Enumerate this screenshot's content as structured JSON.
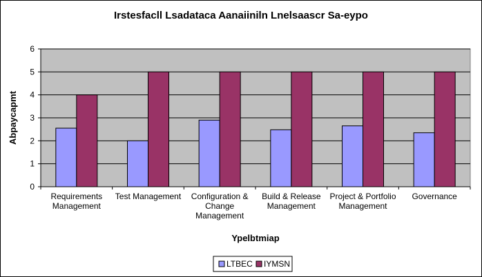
{
  "chart_data": {
    "type": "bar",
    "title": "Irstesfacll Lsadataca Aanaiiniln Lnelsaascr Sa-eypo",
    "xlabel": "Ypelbtmiap",
    "ylabel": "Abpaycapmt",
    "ylim": [
      0,
      6
    ],
    "yticks": [
      0,
      1,
      2,
      3,
      4,
      5,
      6
    ],
    "grid": true,
    "legend_position": "bottom",
    "categories": [
      [
        "Requirements",
        "Management"
      ],
      [
        "Test Management"
      ],
      [
        "Configuration &",
        "Change",
        "Management"
      ],
      [
        "Build & Release",
        "Management"
      ],
      [
        "Project & Portfolio",
        "Management"
      ],
      [
        "Governance"
      ]
    ],
    "series": [
      {
        "name": "LTBEC",
        "color": "#9999ff",
        "values": [
          2.55,
          2.0,
          2.9,
          2.48,
          2.65,
          2.35
        ]
      },
      {
        "name": "IYMSN",
        "color": "#993366",
        "values": [
          4.0,
          5.0,
          5.0,
          5.0,
          5.0,
          5.0
        ]
      }
    ],
    "plot_background": "#c0c0c0"
  }
}
